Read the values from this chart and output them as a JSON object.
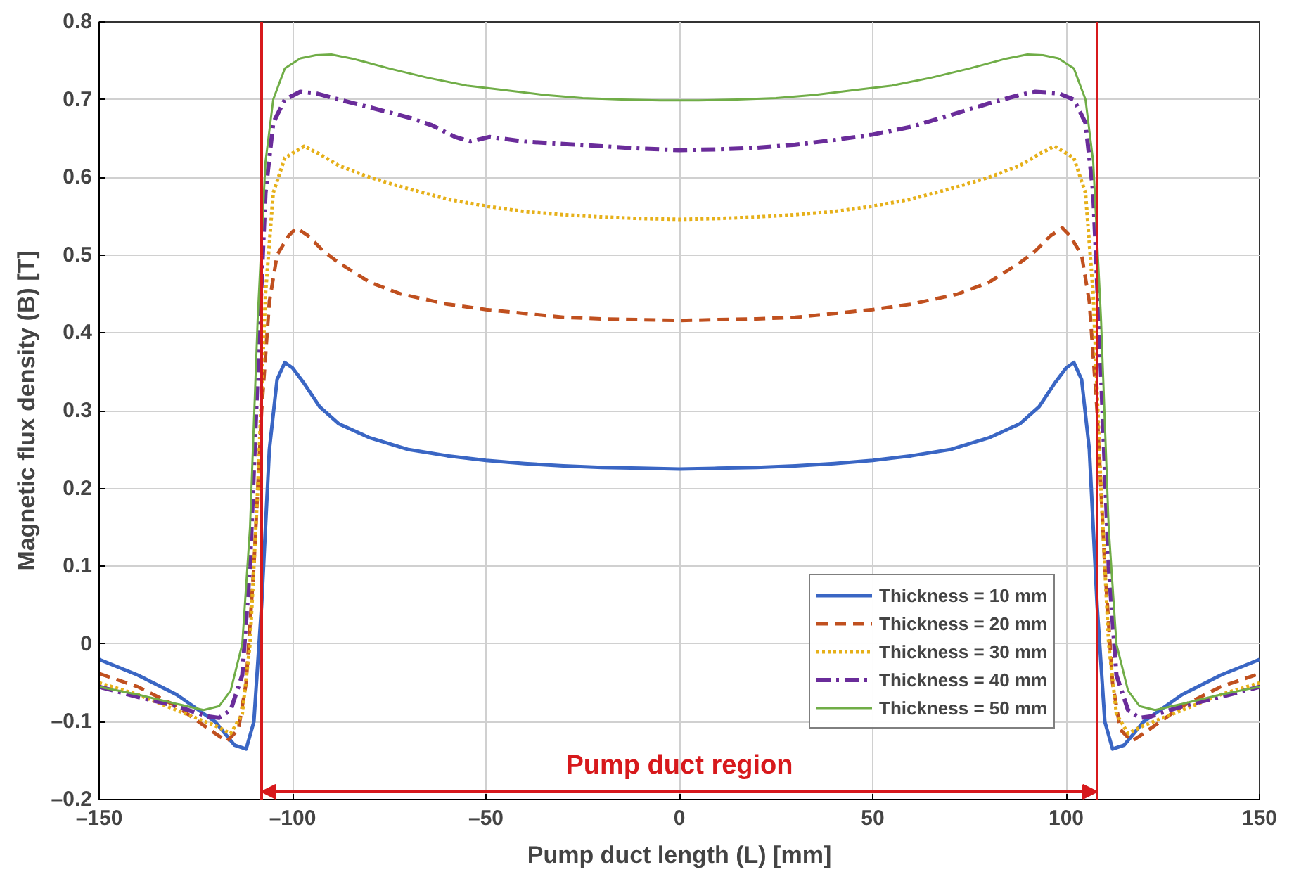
{
  "chart_data": {
    "type": "line",
    "xlabel": "Pump duct length (L) [mm]",
    "ylabel": "Magnetic flux density (B) [T]",
    "xlim": [
      -150,
      150
    ],
    "ylim": [
      -0.2,
      0.8
    ],
    "xticks": [
      {
        "value": -150,
        "label": "–150"
      },
      {
        "value": -100,
        "label": "–100"
      },
      {
        "value": -50,
        "label": "–50"
      },
      0,
      50,
      100,
      150
    ],
    "yticks": [
      {
        "value": -0.2,
        "label": "–0.2"
      },
      {
        "value": -0.1,
        "label": "–0.1"
      },
      0,
      0.1,
      0.2,
      0.3,
      0.4,
      0.5,
      0.6,
      0.7,
      0.8
    ],
    "grid": true,
    "legend": "bottom right",
    "series": [
      {
        "name": "Thickness = 10 mm",
        "color": "#3a66c4",
        "line_style": "solid",
        "x": [
          -150,
          -140,
          -130,
          -120,
          -115,
          -112,
          -110,
          -108,
          -106,
          -104,
          -102,
          -100,
          -97,
          -93,
          -88,
          -80,
          -70,
          -60,
          -50,
          -40,
          -30,
          -20,
          -10,
          0,
          10,
          20,
          30,
          40,
          50,
          60,
          70,
          80,
          88,
          93,
          97,
          100,
          102,
          104,
          106,
          108,
          110,
          112,
          115,
          120,
          130,
          140,
          150
        ],
        "values": [
          -0.02,
          -0.04,
          -0.065,
          -0.1,
          -0.13,
          -0.135,
          -0.1,
          0.05,
          0.25,
          0.34,
          0.362,
          0.355,
          0.335,
          0.305,
          0.283,
          0.265,
          0.25,
          0.242,
          0.236,
          0.232,
          0.229,
          0.227,
          0.226,
          0.225,
          0.226,
          0.227,
          0.229,
          0.232,
          0.236,
          0.242,
          0.25,
          0.265,
          0.283,
          0.305,
          0.335,
          0.355,
          0.362,
          0.34,
          0.25,
          0.05,
          -0.1,
          -0.135,
          -0.13,
          -0.1,
          -0.065,
          -0.04,
          -0.02
        ]
      },
      {
        "name": "Thickness = 20 mm",
        "color": "#c0501f",
        "line_style": "dashed",
        "x": [
          -150,
          -140,
          -130,
          -120,
          -117,
          -114,
          -112,
          -110,
          -108,
          -106,
          -104,
          -101,
          -99,
          -96,
          -92,
          -88,
          -80,
          -72,
          -60,
          -50,
          -40,
          -30,
          -20,
          -10,
          0,
          10,
          20,
          30,
          40,
          50,
          60,
          72,
          80,
          88,
          92,
          96,
          99,
          101,
          104,
          106,
          108,
          110,
          112,
          114,
          117,
          120,
          130,
          140,
          150
        ],
        "values": [
          -0.038,
          -0.055,
          -0.08,
          -0.115,
          -0.125,
          -0.11,
          -0.05,
          0.1,
          0.3,
          0.44,
          0.5,
          0.525,
          0.535,
          0.525,
          0.505,
          0.49,
          0.465,
          0.45,
          0.437,
          0.43,
          0.425,
          0.42,
          0.418,
          0.417,
          0.416,
          0.417,
          0.418,
          0.42,
          0.425,
          0.43,
          0.437,
          0.45,
          0.465,
          0.49,
          0.505,
          0.525,
          0.535,
          0.525,
          0.5,
          0.44,
          0.3,
          0.1,
          -0.05,
          -0.11,
          -0.125,
          -0.115,
          -0.08,
          -0.055,
          -0.038
        ]
      },
      {
        "name": "Thickness = 30 mm",
        "color": "#e6b019",
        "line_style": "dotted",
        "x": [
          -150,
          -140,
          -130,
          -120,
          -116,
          -113,
          -111,
          -109,
          -107,
          -105,
          -102,
          -97,
          -93,
          -88,
          -80,
          -72,
          -60,
          -50,
          -40,
          -30,
          -20,
          -10,
          0,
          10,
          20,
          30,
          40,
          50,
          60,
          72,
          80,
          88,
          93,
          97,
          102,
          105,
          107,
          109,
          111,
          113,
          116,
          120,
          130,
          140,
          150
        ],
        "values": [
          -0.05,
          -0.065,
          -0.085,
          -0.105,
          -0.115,
          -0.09,
          0.0,
          0.2,
          0.45,
          0.58,
          0.625,
          0.64,
          0.63,
          0.615,
          0.6,
          0.588,
          0.572,
          0.563,
          0.556,
          0.552,
          0.549,
          0.547,
          0.546,
          0.547,
          0.549,
          0.552,
          0.556,
          0.563,
          0.572,
          0.588,
          0.6,
          0.615,
          0.63,
          0.64,
          0.625,
          0.58,
          0.45,
          0.2,
          0.0,
          -0.09,
          -0.115,
          -0.105,
          -0.085,
          -0.065,
          -0.05
        ]
      },
      {
        "name": "Thickness = 40 mm",
        "color": "#6a2c9a",
        "line_style": "dashdot",
        "x": [
          -150,
          -140,
          -130,
          -122,
          -119,
          -116,
          -113,
          -111,
          -109,
          -107,
          -105,
          -102,
          -98,
          -94,
          -88,
          -80,
          -70,
          -64,
          -58,
          -54,
          -49,
          -40,
          -30,
          -20,
          -10,
          0,
          10,
          20,
          30,
          40,
          50,
          60,
          70,
          80,
          88,
          92,
          98,
          102,
          105,
          107,
          109,
          111,
          113,
          116,
          119,
          122,
          130,
          140,
          150
        ],
        "values": [
          -0.055,
          -0.068,
          -0.08,
          -0.093,
          -0.095,
          -0.085,
          -0.04,
          0.1,
          0.35,
          0.58,
          0.67,
          0.7,
          0.71,
          0.708,
          0.7,
          0.69,
          0.677,
          0.667,
          0.652,
          0.646,
          0.652,
          0.646,
          0.643,
          0.64,
          0.637,
          0.635,
          0.636,
          0.638,
          0.642,
          0.648,
          0.655,
          0.665,
          0.68,
          0.695,
          0.706,
          0.71,
          0.708,
          0.7,
          0.67,
          0.58,
          0.35,
          0.1,
          -0.04,
          -0.085,
          -0.095,
          -0.093,
          -0.08,
          -0.068,
          -0.055
        ]
      },
      {
        "name": "Thickness = 50 mm",
        "color": "#70ad47",
        "line_style": "solid",
        "x": [
          -150,
          -140,
          -130,
          -123,
          -119,
          -116,
          -113,
          -111,
          -109,
          -107,
          -105,
          -102,
          -98,
          -94,
          -90,
          -84,
          -75,
          -65,
          -55,
          -45,
          -35,
          -25,
          -15,
          -5,
          0,
          5,
          15,
          25,
          35,
          45,
          55,
          65,
          75,
          84,
          90,
          94,
          98,
          102,
          105,
          107,
          109,
          111,
          113,
          116,
          119,
          123,
          130,
          140,
          150
        ],
        "values": [
          -0.055,
          -0.065,
          -0.077,
          -0.085,
          -0.08,
          -0.06,
          0.0,
          0.15,
          0.42,
          0.62,
          0.7,
          0.74,
          0.753,
          0.757,
          0.758,
          0.752,
          0.74,
          0.728,
          0.718,
          0.712,
          0.706,
          0.702,
          0.7,
          0.699,
          0.699,
          0.699,
          0.7,
          0.702,
          0.706,
          0.712,
          0.718,
          0.728,
          0.74,
          0.752,
          0.758,
          0.757,
          0.753,
          0.74,
          0.7,
          0.62,
          0.42,
          0.15,
          0.0,
          -0.06,
          -0.08,
          -0.085,
          -0.077,
          -0.065,
          -0.055
        ]
      }
    ],
    "ref_lines": [
      {
        "axis": "x",
        "value": -108,
        "color": "#d7191c"
      },
      {
        "axis": "x",
        "value": 108,
        "color": "#d7191c"
      }
    ],
    "annotations": [
      "Pump duct region"
    ]
  }
}
